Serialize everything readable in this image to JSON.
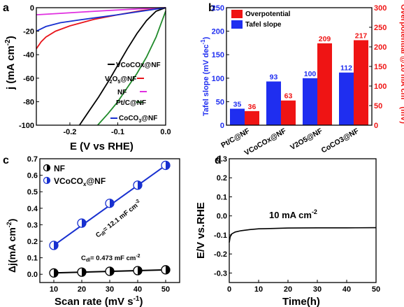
{
  "colors": {
    "black": "#000000",
    "red": "#e8141b",
    "magenta": "#e030e0",
    "green": "#1f8a2a",
    "blue": "#1830d0",
    "bar_blue": "#1f2ef0",
    "bar_red": "#ef1414"
  },
  "chart_data": [
    {
      "panel": "a",
      "type": "line",
      "xlabel": "E (V vs RHE)",
      "ylabel": "j (mA cm-2)",
      "xlim": [
        -0.27,
        0.0
      ],
      "ylim": [
        -100,
        0
      ],
      "xticks": [
        "-0.2",
        "-0.1",
        "0.0"
      ],
      "yticks": [
        "0",
        "-20",
        "-40",
        "-60",
        "-80",
        "-100"
      ],
      "legend_position": "right",
      "series": [
        {
          "name": "VCoCOx@NF",
          "color": "#000000",
          "points": [
            [
              -0.18,
              -100
            ],
            [
              -0.16,
              -88
            ],
            [
              -0.14,
              -76
            ],
            [
              -0.12,
              -63
            ],
            [
              -0.1,
              -49
            ],
            [
              -0.08,
              -35
            ],
            [
              -0.06,
              -22
            ],
            [
              -0.04,
              -11
            ],
            [
              -0.02,
              -3
            ],
            [
              0.0,
              0
            ]
          ]
        },
        {
          "name": "V2O5@NF",
          "color": "#e8141b",
          "points": [
            [
              -0.27,
              -35
            ],
            [
              -0.26,
              -29
            ],
            [
              -0.25,
              -25
            ],
            [
              -0.23,
              -20
            ],
            [
              -0.2,
              -15.5
            ],
            [
              -0.15,
              -10
            ],
            [
              -0.1,
              -6
            ],
            [
              -0.05,
              -2.5
            ],
            [
              0.0,
              0
            ]
          ]
        },
        {
          "name": "NF",
          "color": "#e030e0",
          "points": [
            [
              -0.27,
              -6
            ],
            [
              -0.22,
              -4.8
            ],
            [
              -0.17,
              -3.6
            ],
            [
              -0.12,
              -2.4
            ],
            [
              -0.07,
              -1.3
            ],
            [
              -0.02,
              -0.3
            ],
            [
              0.0,
              0
            ]
          ]
        },
        {
          "name": "Pt/C@NF",
          "color": "#1f8a2a",
          "points": [
            [
              -0.142,
              -100
            ],
            [
              -0.12,
              -90
            ],
            [
              -0.1,
              -80
            ],
            [
              -0.08,
              -68
            ],
            [
              -0.06,
              -56
            ],
            [
              -0.04,
              -42
            ],
            [
              -0.02,
              -25
            ],
            [
              -0.01,
              -14
            ],
            [
              0.0,
              -3
            ]
          ]
        },
        {
          "name": "CoCO3@NF",
          "color": "#1830d0",
          "points": [
            [
              -0.27,
              -20
            ],
            [
              -0.25,
              -16
            ],
            [
              -0.22,
              -12.8
            ],
            [
              -0.18,
              -10.4
            ],
            [
              -0.14,
              -8.2
            ],
            [
              -0.1,
              -6
            ],
            [
              -0.06,
              -3.6
            ],
            [
              -0.03,
              -1.8
            ],
            [
              0.0,
              0
            ]
          ]
        }
      ]
    },
    {
      "panel": "b",
      "type": "bar",
      "categories": [
        "Pt/C@NF",
        "VCoCOx@NF",
        "V2O5@NF",
        "CoCO3@NF"
      ],
      "ylabel": "Tafel slope (mV dec-1)",
      "y2label": "Overpotential @10 mA cm-2 (mV)",
      "ylim": [
        0,
        250
      ],
      "y2lim": [
        0,
        300
      ],
      "yticks": [
        "0",
        "50",
        "100",
        "150",
        "200",
        "250"
      ],
      "y2ticks": [
        "0",
        "50",
        "100",
        "150",
        "200",
        "250",
        "300"
      ],
      "legend_position": "top-left",
      "series": [
        {
          "name": "Tafel slope",
          "axis": "left",
          "color": "#1f2ef0",
          "values": [
            35,
            93,
            100,
            112
          ],
          "labels": [
            "35",
            "93",
            "100",
            "112"
          ]
        },
        {
          "name": "Overpotential",
          "axis": "right",
          "color": "#ef1414",
          "values": [
            36,
            63,
            209,
            217
          ],
          "labels": [
            "36",
            "63",
            "209",
            "217"
          ]
        }
      ]
    },
    {
      "panel": "c",
      "type": "scatter",
      "xlabel": "Scan rate (mV s-1)",
      "ylabel": "Δj(mA cm-2)",
      "xlim": [
        5,
        55
      ],
      "ylim": [
        -0.05,
        0.7
      ],
      "xticks": [
        "10",
        "20",
        "30",
        "40",
        "50"
      ],
      "yticks": [
        "0.0",
        "0.1",
        "0.2",
        "0.3",
        "0.4",
        "0.5",
        "0.6",
        "0.7"
      ],
      "legend_position": "top-left",
      "annotations": [
        "Cdl= 12.1 mF cm-2",
        "Cdl= 0.473 mF cm-2"
      ],
      "series": [
        {
          "name": "NF",
          "color": "#000000",
          "x": [
            10,
            20,
            30,
            40,
            50
          ],
          "y": [
            0.008,
            0.013,
            0.018,
            0.022,
            0.027
          ]
        },
        {
          "name": "VCoCOx@NF",
          "color": "#1830d0",
          "x": [
            10,
            20,
            30,
            40,
            50
          ],
          "y": [
            0.175,
            0.31,
            0.43,
            0.54,
            0.66
          ]
        }
      ]
    },
    {
      "panel": "d",
      "type": "line",
      "xlabel": "Time(h)",
      "ylabel": "E/V vs.RHE",
      "xlim": [
        0,
        50
      ],
      "ylim": [
        -0.35,
        0.3
      ],
      "xticks": [
        "0",
        "10",
        "20",
        "30",
        "40",
        "50"
      ],
      "yticks": [
        "0.3",
        "0.2",
        "0.1",
        "0.0",
        "-0.1",
        "-0.2",
        "-0.3"
      ],
      "annotations": [
        "10 mA cm-2"
      ],
      "series": [
        {
          "color": "#000000",
          "points": [
            [
              0,
              -0.14
            ],
            [
              0.3,
              -0.11
            ],
            [
              0.8,
              -0.095
            ],
            [
              2,
              -0.085
            ],
            [
              4,
              -0.078
            ],
            [
              7,
              -0.072
            ],
            [
              10,
              -0.068
            ],
            [
              15,
              -0.066
            ],
            [
              20,
              -0.064
            ],
            [
              30,
              -0.063
            ],
            [
              40,
              -0.063
            ],
            [
              50,
              -0.062
            ]
          ]
        }
      ]
    }
  ]
}
